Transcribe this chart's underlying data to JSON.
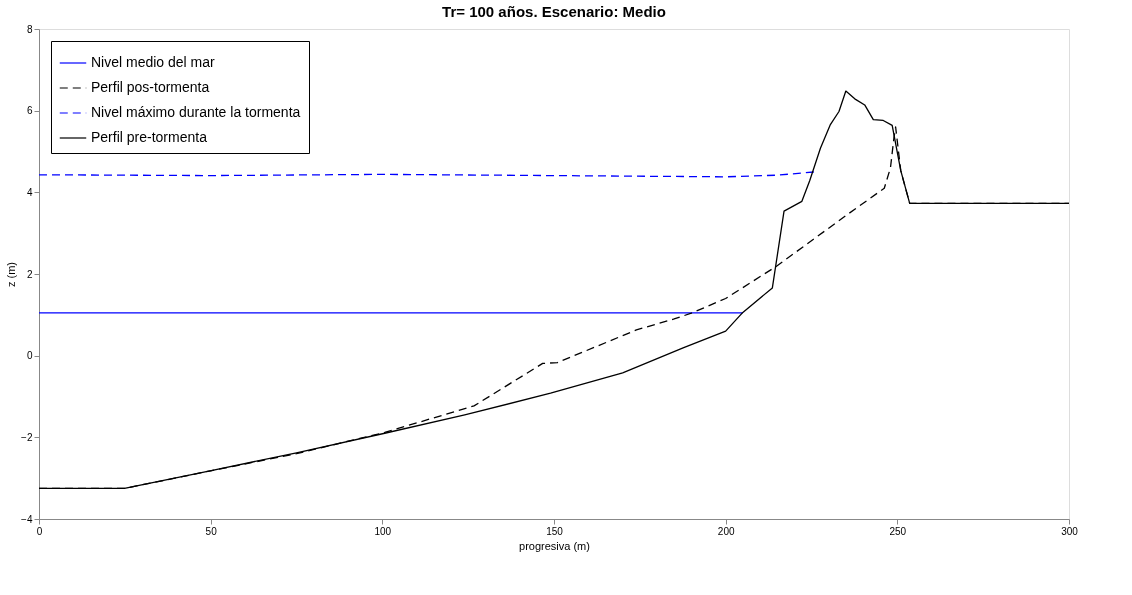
{
  "chart_data": {
    "type": "line",
    "title": "Tr= 100 años.  Escenario: Medio",
    "xlabel": "progresiva (m)",
    "ylabel": "z (m)",
    "xlim": [
      0,
      300
    ],
    "xticks": [
      0,
      50,
      100,
      150,
      200,
      250,
      300
    ],
    "ylim": [
      -4,
      8
    ],
    "yticks": [
      -4,
      -2,
      0,
      2,
      4,
      6,
      8
    ],
    "grid": false,
    "legend": "top left",
    "series": [
      {
        "name": "Nivel medio del mar",
        "color": "#0000ff",
        "line_style": "solid",
        "x": [
          0,
          205
        ],
        "values": [
          1.05,
          1.05
        ]
      },
      {
        "name": "Perfil pos-tormenta",
        "color": "#000000",
        "line_style": "dashed",
        "x": [
          0,
          25,
          50,
          75,
          100.7,
          126.7,
          146.7,
          151,
          155,
          174,
          185,
          190,
          200,
          214.8,
          236,
          246.2,
          248,
          249,
          249.5,
          251,
          253.6,
          300
        ],
        "values": [
          -3.25,
          -3.25,
          -2.82,
          -2.4,
          -1.88,
          -1.23,
          -0.19,
          -0.17,
          -0.03,
          0.63,
          0.9,
          1.04,
          1.4,
          2.19,
          3.49,
          4.1,
          4.6,
          5.33,
          5.6,
          4.53,
          3.73,
          3.73
        ]
      },
      {
        "name": "Nivel máximo durante la tormenta",
        "color": "#0000ff",
        "line_style": "dashed",
        "x": [
          0,
          50,
          100,
          150,
          200,
          215,
          226
        ],
        "values": [
          4.43,
          4.41,
          4.44,
          4.41,
          4.38,
          4.42,
          4.5
        ]
      },
      {
        "name": "Perfil pre-tormenta",
        "color": "#000000",
        "line_style": "solid",
        "x": [
          0,
          24.9,
          49.8,
          75,
          100.7,
          124,
          149,
          170,
          187.6,
          200,
          205,
          213.6,
          217,
          222.2,
          224.5,
          227.6,
          230.5,
          233,
          235,
          237.6,
          240.5,
          243,
          245.9,
          248.5,
          251,
          253.6,
          300
        ],
        "values": [
          -3.25,
          -3.25,
          -2.82,
          -2.38,
          -1.9,
          -1.45,
          -0.92,
          -0.42,
          0.19,
          0.6,
          1.06,
          1.66,
          3.54,
          3.78,
          4.29,
          5.08,
          5.66,
          5.98,
          6.48,
          6.29,
          6.14,
          5.78,
          5.76,
          5.64,
          4.53,
          3.73,
          3.73
        ]
      }
    ]
  }
}
